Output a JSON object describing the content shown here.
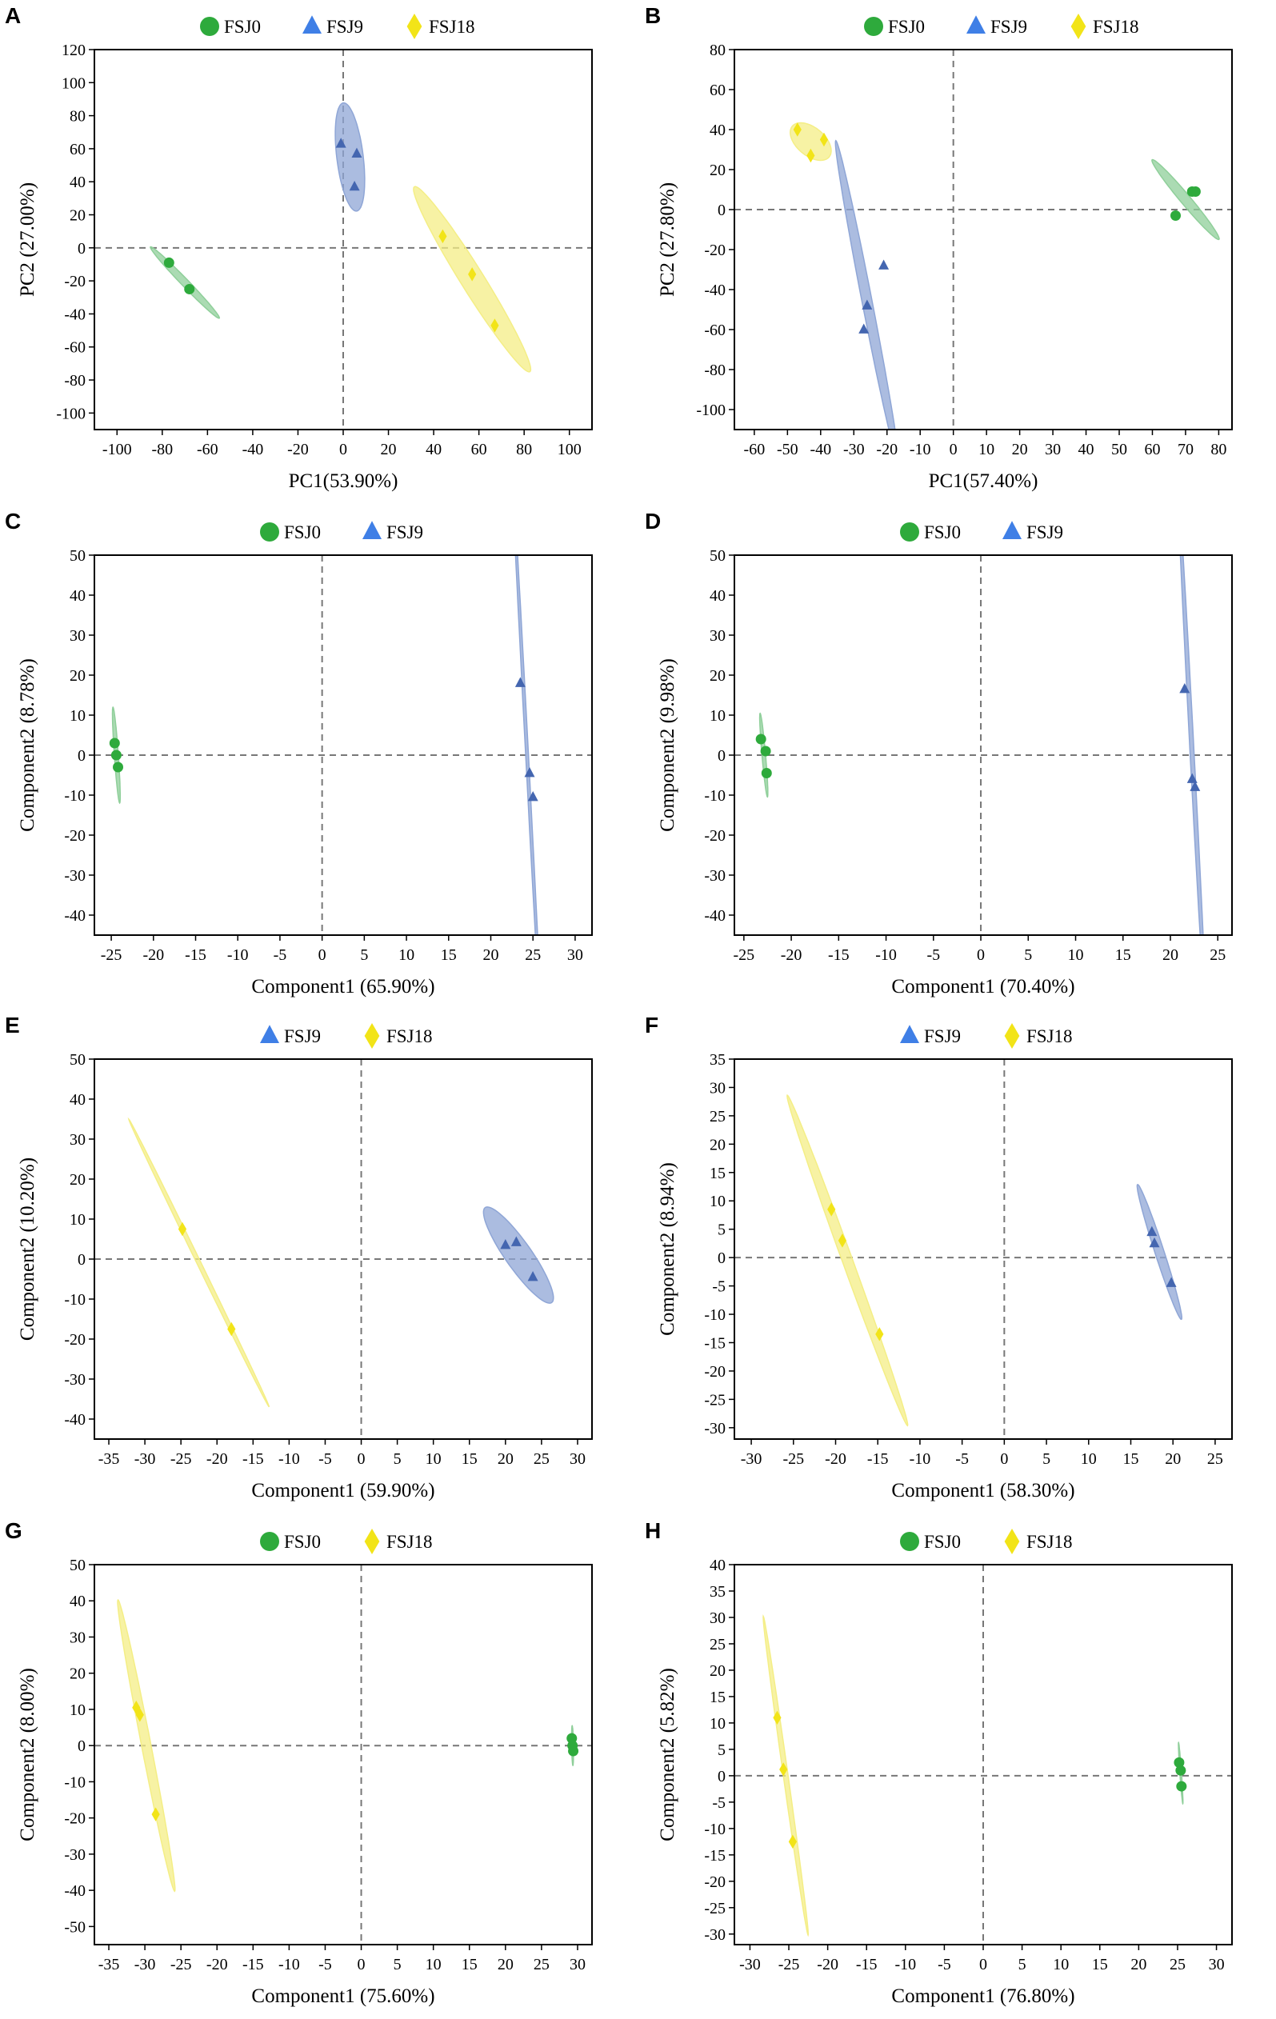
{
  "colors": {
    "fsj0": "#2eaa3c",
    "fsj9": "#4466b0",
    "fsj9_legend": "#3f7fe6",
    "fsj18": "#f2e418",
    "ellipse_green": "#8fcf9a",
    "ellipse_blue": "#8fa6d6",
    "ellipse_yellow": "#f4ee86"
  },
  "chart_data": [
    {
      "panel_label": "A",
      "type": "scatter",
      "xlabel": "PC1(53.90%)",
      "ylabel": "PC2 (27.00%)",
      "xlim": [
        -110,
        110
      ],
      "ylim": [
        -110,
        120
      ],
      "xticks": [
        -100,
        -80,
        -60,
        -40,
        -20,
        0,
        20,
        40,
        60,
        80,
        100
      ],
      "yticks": [
        -100,
        -80,
        -60,
        -40,
        -20,
        0,
        20,
        40,
        60,
        80,
        100,
        120
      ],
      "legend": [
        "FSJ0",
        "FSJ9",
        "FSJ18"
      ],
      "series": [
        {
          "name": "FSJ0",
          "marker": "circle",
          "x": [
            -77,
            -68
          ],
          "y": [
            -9,
            -25
          ],
          "ellipse": {
            "cx": -70,
            "cy": -21,
            "rx": 30,
            "ry": 2.2,
            "angle": -46
          }
        },
        {
          "name": "FSJ9",
          "marker": "triangle",
          "x": [
            -1,
            6,
            5
          ],
          "y": [
            63,
            57,
            37
          ],
          "ellipse": {
            "cx": 3,
            "cy": 55,
            "rx": 33,
            "ry": 8,
            "angle": -83
          }
        },
        {
          "name": "FSJ18",
          "marker": "diamond",
          "x": [
            44,
            57,
            67
          ],
          "y": [
            7,
            -16,
            -47
          ],
          "ellipse": {
            "cx": 57,
            "cy": -19,
            "rx": 66,
            "ry": 7,
            "angle": -58
          }
        }
      ]
    },
    {
      "panel_label": "B",
      "type": "scatter",
      "xlabel": "PC1(57.40%)",
      "ylabel": "PC2 (27.80%)",
      "xlim": [
        -66,
        84
      ],
      "ylim": [
        -110,
        80
      ],
      "xticks": [
        -60,
        -50,
        -40,
        -30,
        -20,
        -10,
        0,
        10,
        20,
        30,
        40,
        50,
        60,
        70,
        80
      ],
      "yticks": [
        -100,
        -80,
        -60,
        -40,
        -20,
        0,
        20,
        40,
        60,
        80
      ],
      "legend": [
        "FSJ0",
        "FSJ9",
        "FSJ18"
      ],
      "series": [
        {
          "name": "FSJ0",
          "marker": "circle",
          "x": [
            67,
            72,
            73
          ],
          "y": [
            -3,
            9,
            9
          ],
          "ellipse": {
            "cx": 70,
            "cy": 5,
            "rx": 26,
            "ry": 2.5,
            "angle": -50
          }
        },
        {
          "name": "FSJ9",
          "marker": "triangle",
          "x": [
            -21,
            -26,
            -27
          ],
          "y": [
            -28,
            -48,
            -60
          ],
          "ellipse": {
            "cx": -26,
            "cy": -46,
            "rx": 82,
            "ry": 2.5,
            "angle": -79
          }
        },
        {
          "name": "FSJ18",
          "marker": "diamond",
          "x": [
            -47,
            -43,
            -39
          ],
          "y": [
            40,
            27,
            35
          ],
          "ellipse": {
            "cx": -43,
            "cy": 34,
            "rx": 12,
            "ry": 7,
            "angle": -40
          }
        }
      ]
    },
    {
      "panel_label": "C",
      "type": "scatter",
      "xlabel": "Component1 (65.90%)",
      "ylabel": "Component2 (8.78%)",
      "xlim": [
        -27,
        32
      ],
      "ylim": [
        -45,
        50
      ],
      "xticks": [
        -25,
        -20,
        -15,
        -10,
        -5,
        0,
        5,
        10,
        15,
        20,
        25,
        30
      ],
      "yticks": [
        -40,
        -30,
        -20,
        -10,
        0,
        10,
        20,
        30,
        40,
        50
      ],
      "legend": [
        "FSJ0",
        "FSJ9"
      ],
      "series": [
        {
          "name": "FSJ0",
          "marker": "circle",
          "x": [
            -24.6,
            -24.4,
            -24.2
          ],
          "y": [
            3,
            0,
            -3
          ],
          "ellipse": {
            "cx": -24.4,
            "cy": 0,
            "rx": 12,
            "ry": 0.5,
            "angle": -86
          }
        },
        {
          "name": "FSJ9",
          "marker": "triangle",
          "x": [
            23.5,
            24.6,
            25
          ],
          "y": [
            18,
            -4.5,
            -10.5
          ],
          "ellipse": {
            "cx": 24.3,
            "cy": 0,
            "rx": 74,
            "ry": 0.35,
            "angle": -87
          }
        }
      ]
    },
    {
      "panel_label": "D",
      "type": "scatter",
      "xlabel": "Component1 (70.40%)",
      "ylabel": "Component2 (9.98%)",
      "xlim": [
        -26,
        26.5
      ],
      "ylim": [
        -45,
        50
      ],
      "xticks": [
        -25,
        -20,
        -15,
        -10,
        -5,
        0,
        5,
        10,
        15,
        20,
        25
      ],
      "yticks": [
        -40,
        -30,
        -20,
        -10,
        0,
        10,
        20,
        30,
        40,
        50
      ],
      "legend": [
        "FSJ0",
        "FSJ9"
      ],
      "series": [
        {
          "name": "FSJ0",
          "marker": "circle",
          "x": [
            -23.2,
            -22.7,
            -22.6
          ],
          "y": [
            4,
            1,
            -4.5
          ],
          "ellipse": {
            "cx": -22.9,
            "cy": 0,
            "rx": 10.5,
            "ry": 0.45,
            "angle": -85
          }
        },
        {
          "name": "FSJ9",
          "marker": "triangle",
          "x": [
            21.5,
            22.3,
            22.6
          ],
          "y": [
            16.5,
            -6,
            -8
          ],
          "ellipse": {
            "cx": 22.3,
            "cy": 0,
            "rx": 68,
            "ry": 0.5,
            "angle": -87
          }
        }
      ]
    },
    {
      "panel_label": "E",
      "type": "scatter",
      "xlabel": "Component1 (59.90%)",
      "ylabel": "Component2 (10.20%)",
      "xlim": [
        -37,
        32
      ],
      "ylim": [
        -45,
        50
      ],
      "xticks": [
        -35,
        -30,
        -25,
        -20,
        -15,
        -10,
        -5,
        0,
        5,
        10,
        15,
        20,
        25,
        30
      ],
      "yticks": [
        -40,
        -30,
        -20,
        -10,
        0,
        10,
        20,
        30,
        40,
        50
      ],
      "legend": [
        "FSJ9",
        "FSJ18"
      ],
      "series": [
        {
          "name": "FSJ9",
          "marker": "triangle",
          "x": [
            20,
            21.5,
            23.8
          ],
          "y": [
            3.5,
            4.2,
            -4.5
          ],
          "ellipse": {
            "cx": 21.8,
            "cy": 1,
            "rx": 14.5,
            "ry": 3.3,
            "angle": -55
          }
        },
        {
          "name": "FSJ18",
          "marker": "diamond",
          "x": [
            -24.8,
            -18
          ],
          "y": [
            7.5,
            -17.5
          ],
          "ellipse": {
            "cx": -22.5,
            "cy": -1,
            "rx": 40,
            "ry": 0.5,
            "angle": -64
          }
        }
      ]
    },
    {
      "panel_label": "F",
      "type": "scatter",
      "xlabel": "Component1 (58.30%)",
      "ylabel": "Component2 (8.94%)",
      "xlim": [
        -32,
        27
      ],
      "ylim": [
        -32,
        35
      ],
      "xticks": [
        -30,
        -25,
        -20,
        -15,
        -10,
        -5,
        0,
        5,
        10,
        15,
        20,
        25
      ],
      "yticks": [
        -30,
        -25,
        -20,
        -15,
        -10,
        -5,
        0,
        5,
        10,
        15,
        20,
        25,
        30,
        35
      ],
      "legend": [
        "FSJ9",
        "FSJ18"
      ],
      "series": [
        {
          "name": "FSJ9",
          "marker": "triangle",
          "x": [
            17.5,
            17.8,
            19.8
          ],
          "y": [
            4.5,
            2.5,
            -4.5
          ],
          "ellipse": {
            "cx": 18.4,
            "cy": 1,
            "rx": 12.5,
            "ry": 0.8,
            "angle": -72
          }
        },
        {
          "name": "FSJ18",
          "marker": "diamond",
          "x": [
            -20.5,
            -19.2,
            -14.8
          ],
          "y": [
            8.5,
            3,
            -13.5
          ],
          "ellipse": {
            "cx": -18.6,
            "cy": -0.5,
            "rx": 31,
            "ry": 0.9,
            "angle": -70
          }
        }
      ]
    },
    {
      "panel_label": "G",
      "type": "scatter",
      "xlabel": "Component1 (75.60%)",
      "ylabel": "Component2 (8.00%)",
      "xlim": [
        -37,
        32
      ],
      "ylim": [
        -55,
        50
      ],
      "xticks": [
        -35,
        -30,
        -25,
        -20,
        -15,
        -10,
        -5,
        0,
        5,
        10,
        15,
        20,
        25,
        30
      ],
      "yticks": [
        -50,
        -40,
        -30,
        -20,
        -10,
        0,
        10,
        20,
        30,
        40,
        50
      ],
      "legend": [
        "FSJ0",
        "FSJ18"
      ],
      "series": [
        {
          "name": "FSJ0",
          "marker": "circle",
          "x": [
            29.2,
            29.3,
            29.4
          ],
          "y": [
            2,
            0,
            -1.5
          ],
          "ellipse": {
            "cx": 29.3,
            "cy": 0,
            "rx": 5.5,
            "ry": 0.25,
            "angle": -89
          }
        },
        {
          "name": "FSJ18",
          "marker": "diamond",
          "x": [
            -31.2,
            -30.7,
            -28.5
          ],
          "y": [
            10.5,
            8.5,
            -19
          ],
          "ellipse": {
            "cx": -29.8,
            "cy": 0,
            "rx": 41,
            "ry": 1.3,
            "angle": -79
          }
        }
      ]
    },
    {
      "panel_label": "H",
      "type": "scatter",
      "xlabel": "Component1 (76.80%)",
      "ylabel": "Component2 (5.82%)",
      "xlim": [
        -32,
        32
      ],
      "ylim": [
        -32,
        40
      ],
      "xticks": [
        -30,
        -25,
        -20,
        -15,
        -10,
        -5,
        0,
        5,
        10,
        15,
        20,
        25,
        30
      ],
      "yticks": [
        -30,
        -25,
        -20,
        -15,
        -10,
        -5,
        0,
        5,
        10,
        15,
        20,
        25,
        30,
        35,
        40
      ],
      "legend": [
        "FSJ0",
        "FSJ18"
      ],
      "series": [
        {
          "name": "FSJ0",
          "marker": "circle",
          "x": [
            25.2,
            25.4,
            25.5
          ],
          "y": [
            2.5,
            1,
            -2
          ],
          "ellipse": {
            "cx": 25.4,
            "cy": 0.5,
            "rx": 5.8,
            "ry": 0.15,
            "angle": -86
          }
        },
        {
          "name": "FSJ18",
          "marker": "diamond",
          "x": [
            -26.5,
            -25.7,
            -24.5
          ],
          "y": [
            11,
            1.2,
            -12.5
          ],
          "ellipse": {
            "cx": -25.4,
            "cy": 0,
            "rx": 30.5,
            "ry": 0.45,
            "angle": -82
          }
        }
      ]
    }
  ]
}
